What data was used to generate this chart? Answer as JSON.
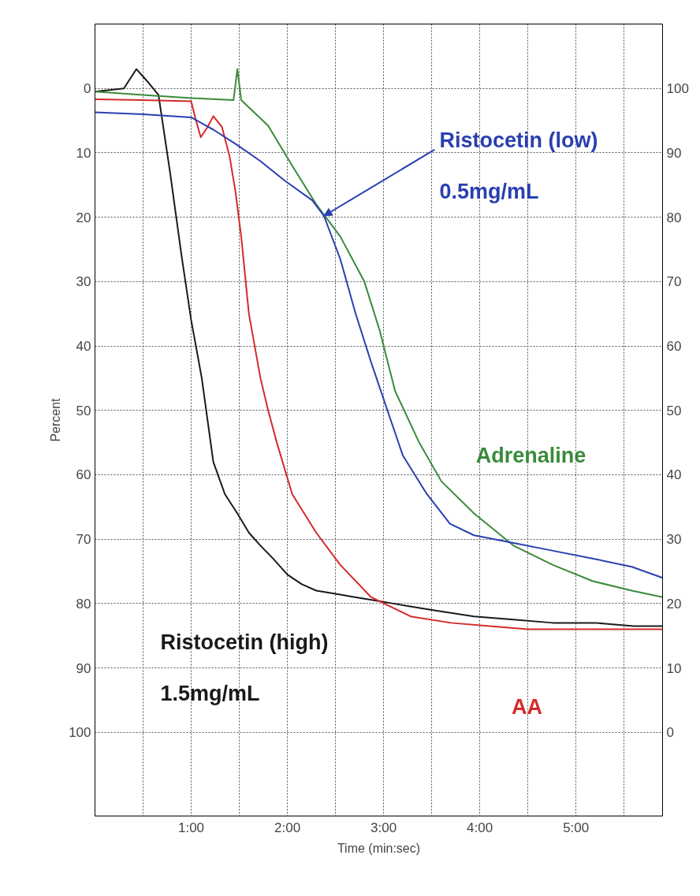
{
  "chart_data": {
    "type": "line",
    "xlabel": "Time (min:sec)",
    "ylabel": "Percent",
    "xlim": [
      0,
      5.9
    ],
    "ylim": [
      113,
      -10
    ],
    "y2lim": [
      -13,
      110
    ],
    "xticks": [
      {
        "value": 0.5,
        "label": null
      },
      {
        "value": 1,
        "label": "1:00"
      },
      {
        "value": 1.5,
        "label": null
      },
      {
        "value": 2,
        "label": "2:00"
      },
      {
        "value": 2.5,
        "label": null
      },
      {
        "value": 3,
        "label": "3:00"
      },
      {
        "value": 3.5,
        "label": null
      },
      {
        "value": 4,
        "label": "4:00"
      },
      {
        "value": 4.5,
        "label": null
      },
      {
        "value": 5,
        "label": "5:00"
      },
      {
        "value": 5.5,
        "label": null
      }
    ],
    "yticks": [
      0,
      10,
      20,
      30,
      40,
      50,
      60,
      70,
      80,
      90,
      100
    ],
    "y2ticks": [
      0,
      10,
      20,
      30,
      40,
      50,
      60,
      70,
      80,
      90,
      100
    ],
    "grid": true,
    "line_style": "solid",
    "marker": "none",
    "series": [
      {
        "name": "Ristocetin (high)\n1.5mg/mL",
        "color": "#1a1a1a",
        "x": [
          0,
          0.3,
          0.43,
          0.55,
          0.66,
          0.78,
          0.9,
          1.0,
          1.11,
          1.23,
          1.35,
          1.48,
          1.6,
          1.72,
          1.85,
          2.0,
          2.15,
          2.3,
          2.5,
          2.7,
          2.9,
          3.1,
          3.5,
          3.94,
          4.35,
          4.76,
          5.2,
          5.6,
          5.9
        ],
        "values": [
          0.5,
          0,
          -3,
          -1,
          1,
          13,
          26,
          36,
          45,
          58,
          63,
          66,
          69,
          71,
          73,
          75.5,
          77,
          78,
          78.5,
          79,
          79.5,
          80,
          81,
          82,
          82.5,
          83,
          83,
          83.5,
          83.5
        ]
      },
      {
        "name": "AA",
        "color": "#d42a2a",
        "x": [
          0,
          0.5,
          1.0,
          1.05,
          1.1,
          1.17,
          1.23,
          1.32,
          1.4,
          1.46,
          1.52,
          1.6,
          1.72,
          1.8,
          1.89,
          2.05,
          2.3,
          2.55,
          2.87,
          3.28,
          3.7,
          4.1,
          4.5,
          4.9,
          5.3,
          5.9
        ],
        "values": [
          1.7,
          1.8,
          2,
          5,
          7.6,
          6,
          4.3,
          6,
          10.6,
          16,
          23,
          35,
          45,
          50,
          55,
          63,
          69,
          74,
          79,
          82,
          83,
          83.5,
          84,
          84,
          84,
          84
        ]
      },
      {
        "name": "Adrenaline",
        "color": "#3a8a3a",
        "x": [
          0,
          0.5,
          1.0,
          1.44,
          1.48,
          1.52,
          1.8,
          2.05,
          2.3,
          2.55,
          2.8,
          2.96,
          3.12,
          3.37,
          3.6,
          3.94,
          4.35,
          4.76,
          5.17,
          5.58,
          5.9
        ],
        "values": [
          0.5,
          1,
          1.5,
          1.8,
          -3,
          1.8,
          5.8,
          12,
          18,
          23,
          30,
          37.6,
          47,
          55,
          61,
          66,
          71,
          74,
          76.5,
          78,
          79
        ]
      },
      {
        "name": "Ristocetin (low)\n0.5mg/mL",
        "color": "#2a3fb0",
        "x": [
          0,
          0.5,
          1.0,
          1.23,
          1.48,
          1.72,
          1.97,
          2.26,
          2.38,
          2.55,
          2.71,
          2.87,
          3.04,
          3.2,
          3.45,
          3.69,
          3.94,
          4.35,
          4.76,
          5.17,
          5.58,
          5.9
        ],
        "values": [
          3.7,
          4,
          4.5,
          6.4,
          8.8,
          11.3,
          14.3,
          17.4,
          19.8,
          26.5,
          35,
          42.5,
          50,
          57,
          63,
          67.6,
          69.4,
          70.6,
          71.8,
          73,
          74.3,
          76
        ]
      }
    ]
  }
}
